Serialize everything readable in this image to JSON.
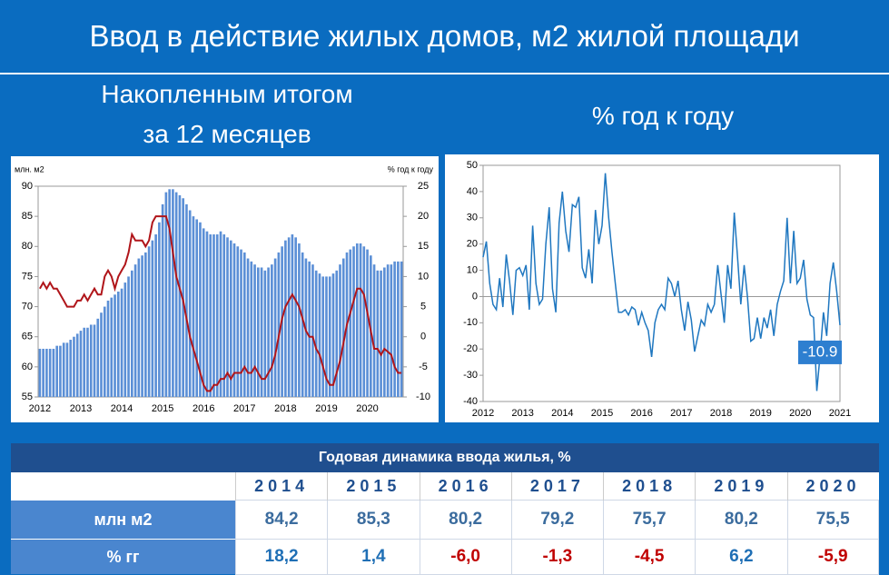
{
  "header": {
    "title": "Ввод в действие жилых домов, м2 жилой площади"
  },
  "subtitles": [
    "Накопленным итогом",
    "за 12 месяцев",
    "% год к году"
  ],
  "chart_data": [
    {
      "type": "bar",
      "y_label": "млн. м2",
      "y2_label": "% год к году",
      "categories": [
        "2012",
        null,
        null,
        null,
        null,
        null,
        null,
        null,
        null,
        null,
        null,
        null,
        "2013",
        null,
        null,
        null,
        null,
        null,
        null,
        null,
        null,
        null,
        null,
        null,
        "2014",
        null,
        null,
        null,
        null,
        null,
        null,
        null,
        null,
        null,
        null,
        null,
        "2015",
        null,
        null,
        null,
        null,
        null,
        null,
        null,
        null,
        null,
        null,
        null,
        "2016",
        null,
        null,
        null,
        null,
        null,
        null,
        null,
        null,
        null,
        null,
        null,
        "2017",
        null,
        null,
        null,
        null,
        null,
        null,
        null,
        null,
        null,
        null,
        null,
        "2018",
        null,
        null,
        null,
        null,
        null,
        null,
        null,
        null,
        null,
        null,
        null,
        "2019",
        null,
        null,
        null,
        null,
        null,
        null,
        null,
        null,
        null,
        null,
        null,
        "2020",
        null,
        null,
        null,
        null,
        null,
        null,
        null,
        null,
        null,
        null
      ],
      "ylim": [
        55,
        90
      ],
      "yticks": [
        55,
        60,
        65,
        70,
        75,
        80,
        85,
        90
      ],
      "y2lim": [
        -10,
        25
      ],
      "y2ticks": [
        -10,
        -5,
        0,
        5,
        10,
        15,
        20,
        25
      ],
      "series": [
        {
          "kind": "bar",
          "color": "#5b8fd6",
          "values": [
            63,
            63,
            63,
            63,
            63,
            63.5,
            63.5,
            64,
            64,
            64.5,
            65,
            65.5,
            66,
            66.5,
            66.5,
            67,
            67,
            68,
            69,
            70,
            71,
            71.5,
            72,
            72.5,
            73,
            74,
            75,
            76,
            77,
            78,
            78.5,
            79,
            80,
            81,
            82,
            84,
            87,
            89,
            89.5,
            89.5,
            89,
            88.5,
            88,
            87,
            86,
            85,
            84.5,
            84,
            83,
            82.5,
            82,
            82,
            82,
            82.5,
            82,
            81.5,
            81,
            80.5,
            80,
            79.5,
            79,
            78,
            77.5,
            77,
            76.5,
            76.5,
            76,
            76.5,
            77,
            78,
            79,
            80,
            81,
            81.5,
            82,
            81.5,
            80.5,
            79,
            78,
            77.5,
            77,
            76,
            75.5,
            75,
            75,
            75,
            75.5,
            76,
            77,
            78,
            79,
            79.5,
            80,
            80.5,
            80.5,
            80,
            79.5,
            78.5,
            77,
            76,
            76,
            76.5,
            77,
            77,
            77.5,
            77.5,
            77.5
          ]
        },
        {
          "kind": "line",
          "color": "#b0151a",
          "axis": "y2",
          "values": [
            8,
            9,
            8,
            9,
            8,
            8,
            7,
            6,
            5,
            5,
            5,
            6,
            6,
            7,
            6,
            7,
            8,
            7,
            7,
            10,
            11,
            10,
            8,
            10,
            11,
            12,
            14,
            17,
            16,
            16,
            16,
            15,
            16,
            19,
            20,
            20,
            20,
            20,
            18,
            14,
            10,
            8,
            6,
            3,
            0,
            -2,
            -4,
            -6,
            -8,
            -9,
            -9,
            -8,
            -8,
            -7,
            -7,
            -6,
            -7,
            -6,
            -6,
            -6,
            -5,
            -6,
            -6,
            -5,
            -6,
            -7,
            -7,
            -6,
            -5,
            -3,
            0,
            3,
            5,
            6,
            7,
            6,
            5,
            3,
            1,
            0,
            0,
            -2,
            -3,
            -5,
            -7,
            -8,
            -8,
            -6,
            -4,
            -1,
            2,
            4,
            6,
            8,
            8,
            7,
            4,
            1,
            -2,
            -2,
            -3,
            -2,
            -2.5,
            -3,
            -5,
            -6,
            -6
          ]
        }
      ]
    },
    {
      "type": "line",
      "categories": [
        "2012",
        null,
        null,
        null,
        null,
        null,
        null,
        null,
        null,
        null,
        null,
        null,
        "2013",
        null,
        null,
        null,
        null,
        null,
        null,
        null,
        null,
        null,
        null,
        null,
        "2014",
        null,
        null,
        null,
        null,
        null,
        null,
        null,
        null,
        null,
        null,
        null,
        "2015",
        null,
        null,
        null,
        null,
        null,
        null,
        null,
        null,
        null,
        null,
        null,
        "2016",
        null,
        null,
        null,
        null,
        null,
        null,
        null,
        null,
        null,
        null,
        null,
        "2017",
        null,
        null,
        null,
        null,
        null,
        null,
        null,
        null,
        null,
        null,
        null,
        "2018",
        null,
        null,
        null,
        null,
        null,
        null,
        null,
        null,
        null,
        null,
        null,
        "2019",
        null,
        null,
        null,
        null,
        null,
        null,
        null,
        null,
        null,
        null,
        null,
        "2020",
        null,
        null,
        null,
        null,
        null,
        null,
        null,
        null,
        null,
        null,
        null,
        "2021"
      ],
      "ylim": [
        -40,
        50
      ],
      "yticks": [
        -40,
        -30,
        -20,
        -10,
        0,
        10,
        20,
        30,
        40,
        50
      ],
      "last_label": true,
      "series": [
        {
          "kind": "line",
          "color": "#1f77c0",
          "values": [
            15,
            21,
            5,
            -3,
            -5,
            7,
            -4,
            16,
            6,
            -7,
            10,
            11,
            8,
            12,
            -5,
            27,
            5,
            -3,
            -1,
            20,
            34,
            3,
            -6,
            28,
            40,
            25,
            17,
            35,
            34,
            38,
            11,
            7,
            18,
            5,
            33,
            20,
            27,
            47,
            30,
            17,
            5,
            -6,
            -6,
            -5,
            -7,
            -4,
            -5,
            -11,
            -6,
            -10,
            -13,
            -23,
            -10,
            -5,
            -3,
            -5,
            7,
            5,
            0,
            6,
            -5,
            -13,
            -2,
            -9,
            -21,
            -15,
            -9,
            -11,
            -3,
            -6,
            -3,
            12,
            1,
            -10,
            12,
            3,
            32,
            15,
            -3,
            12,
            0,
            -17,
            -16,
            -8,
            -16,
            -8,
            -12,
            -5,
            -15,
            -3,
            2,
            6,
            30,
            5,
            25,
            5,
            7,
            14,
            -1,
            -7,
            -8,
            -36,
            -22,
            -6,
            -15,
            5,
            13,
            2,
            -10.9
          ]
        }
      ]
    }
  ],
  "table": {
    "title": "Годовая динамика ввода жилья, %",
    "columns": [
      "2014",
      "2015",
      "2016",
      "2017",
      "2018",
      "2019",
      "2020"
    ],
    "rows": [
      {
        "label": "млн м2",
        "cells": [
          "84,2",
          "85,3",
          "80,2",
          "79,2",
          "75,7",
          "80,2",
          "75,5"
        ]
      },
      {
        "label": "% гг",
        "cells": [
          "18,2",
          "1,4",
          "-6,0",
          "-1,3",
          "-4,5",
          "6,2",
          "-5,9"
        ]
      }
    ]
  }
}
